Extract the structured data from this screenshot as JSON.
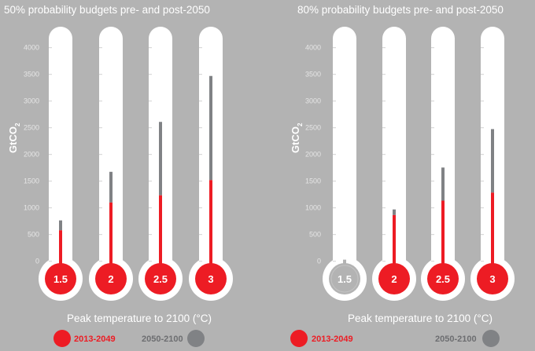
{
  "colors": {
    "background": "#b3b3b3",
    "pre_2050": "#ed1c24",
    "post_2050": "#808285",
    "tube": "#ffffff"
  },
  "chart_data": [
    {
      "type": "bar",
      "style": "thermometer stacked",
      "title": "50% probability budgets pre- and post-2050",
      "ylabel": "GtCO",
      "ylabel_sub": "2",
      "xlabel": "Peak temperature to 2100 (°C)",
      "xlabel_main": "Peak temperature to 2100 (",
      "xlabel_deg": "o",
      "xlabel_end": "C)",
      "ylim": [
        0,
        4000
      ],
      "yticks": [
        "0",
        "500",
        "1000",
        "1500",
        "2000",
        "2500",
        "3000",
        "3500",
        "4000"
      ],
      "categories": [
        "1.5",
        "2",
        "2.5",
        "3"
      ],
      "series": [
        {
          "name": "2013-2049",
          "values": [
            580,
            1100,
            1235,
            1520
          ]
        },
        {
          "name": "2050-2100",
          "values": [
            185,
            575,
            1375,
            1950
          ]
        }
      ],
      "legend": "bottom"
    },
    {
      "type": "bar",
      "style": "thermometer stacked",
      "title": "80% probability budgets pre- and post-2050",
      "ylabel": "GtCO",
      "ylabel_sub": "2",
      "xlabel": "Peak temperature to 2100 (°C)",
      "xlabel_main": "Peak temperature to 2100 (",
      "xlabel_deg": "o",
      "xlabel_end": "C)",
      "ylim": [
        0,
        4000
      ],
      "yticks": [
        "0",
        "500",
        "1000",
        "1500",
        "2000",
        "2500",
        "3000",
        "3500",
        "4000"
      ],
      "categories": [
        "1.5",
        "2",
        "2.5",
        "3"
      ],
      "series": [
        {
          "name": "2013-2049",
          "values": [
            0,
            865,
            1135,
            1285
          ]
        },
        {
          "name": "2050-2100",
          "values": [
            30,
            105,
            620,
            1190
          ]
        }
      ],
      "legend": "bottom"
    }
  ]
}
